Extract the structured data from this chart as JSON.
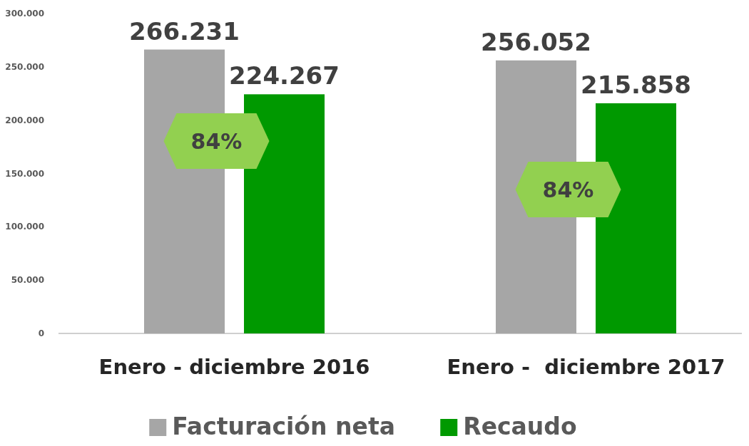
{
  "chart_data": {
    "type": "bar",
    "categories": [
      "Enero - diciembre 2016",
      "Enero -  diciembre 2017"
    ],
    "series": [
      {
        "name": "Facturación neta",
        "color": "#a6a6a6",
        "values": [
          266231,
          256052
        ],
        "value_labels": [
          "266.231",
          "256.052"
        ]
      },
      {
        "name": "Recaudo",
        "color": "#009900",
        "values": [
          224267,
          215858
        ],
        "value_labels": [
          "224.267",
          "215.858"
        ]
      }
    ],
    "ylim": [
      0,
      300000
    ],
    "yticks": [
      {
        "value": 0,
        "label": "0"
      },
      {
        "value": 50000,
        "label": "50.000"
      },
      {
        "value": 100000,
        "label": "100.000"
      },
      {
        "value": 150000,
        "label": "150.000"
      },
      {
        "value": 200000,
        "label": "200.000"
      },
      {
        "value": 250000,
        "label": "250.000"
      },
      {
        "value": 300000,
        "label": "300.000"
      }
    ],
    "annotations": [
      "84%",
      "84%"
    ],
    "grid": false,
    "legend": "bottom"
  }
}
